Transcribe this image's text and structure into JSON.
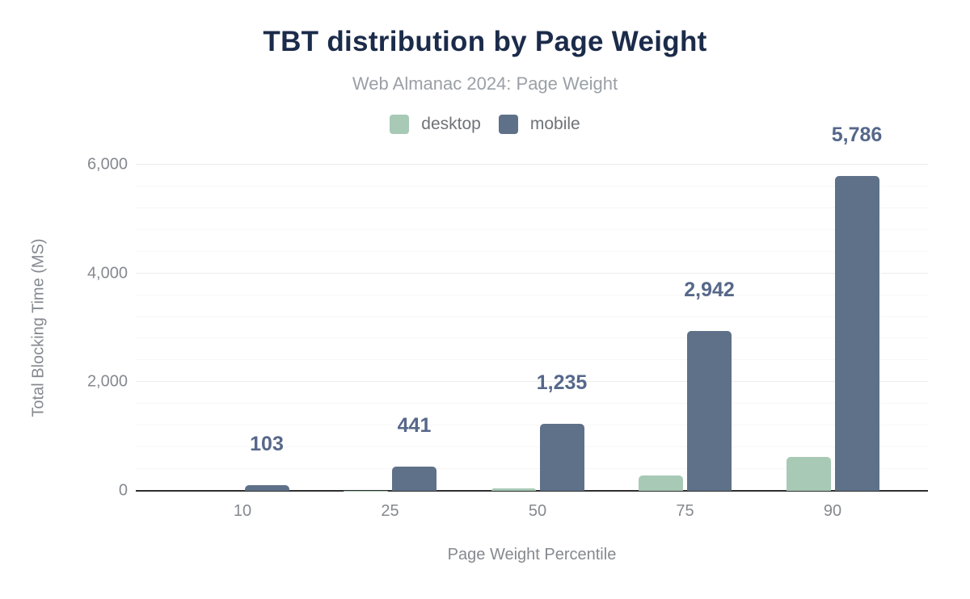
{
  "chart_data": {
    "type": "bar",
    "title": "TBT distribution by Page Weight",
    "subtitle": "Web Almanac 2024: Page Weight",
    "xlabel": "Page Weight Percentile",
    "ylabel": "Total Blocking Time (MS)",
    "categories": [
      "10",
      "25",
      "50",
      "75",
      "90"
    ],
    "series": [
      {
        "name": "desktop",
        "color": "#a7c9b5",
        "values": [
          0,
          5,
          40,
          280,
          630
        ]
      },
      {
        "name": "mobile",
        "color": "#5e7189",
        "values": [
          103,
          441,
          1235,
          2942,
          5786
        ],
        "value_labels": [
          "103",
          "441",
          "1,235",
          "2,942",
          "5,786"
        ]
      }
    ],
    "ylim": [
      0,
      6000
    ],
    "y_major_ticks": [
      0,
      2000,
      4000,
      6000
    ],
    "y_tick_labels": [
      "0",
      "2,000",
      "4,000",
      "6,000"
    ],
    "y_minor_interval": 400,
    "grid": true,
    "legend_position": "top",
    "value_labels_on": "mobile"
  },
  "colors": {
    "title": "#1b2b4a",
    "subtitle": "#9aa0a6",
    "axis_text": "#85898f",
    "value_label": "#56688a",
    "desktop_bar": "#a7c9b5",
    "mobile_bar": "#5e7189",
    "baseline": "#2e2e2e",
    "grid_major": "#ececec",
    "grid_minor": "#f7f7f7"
  }
}
